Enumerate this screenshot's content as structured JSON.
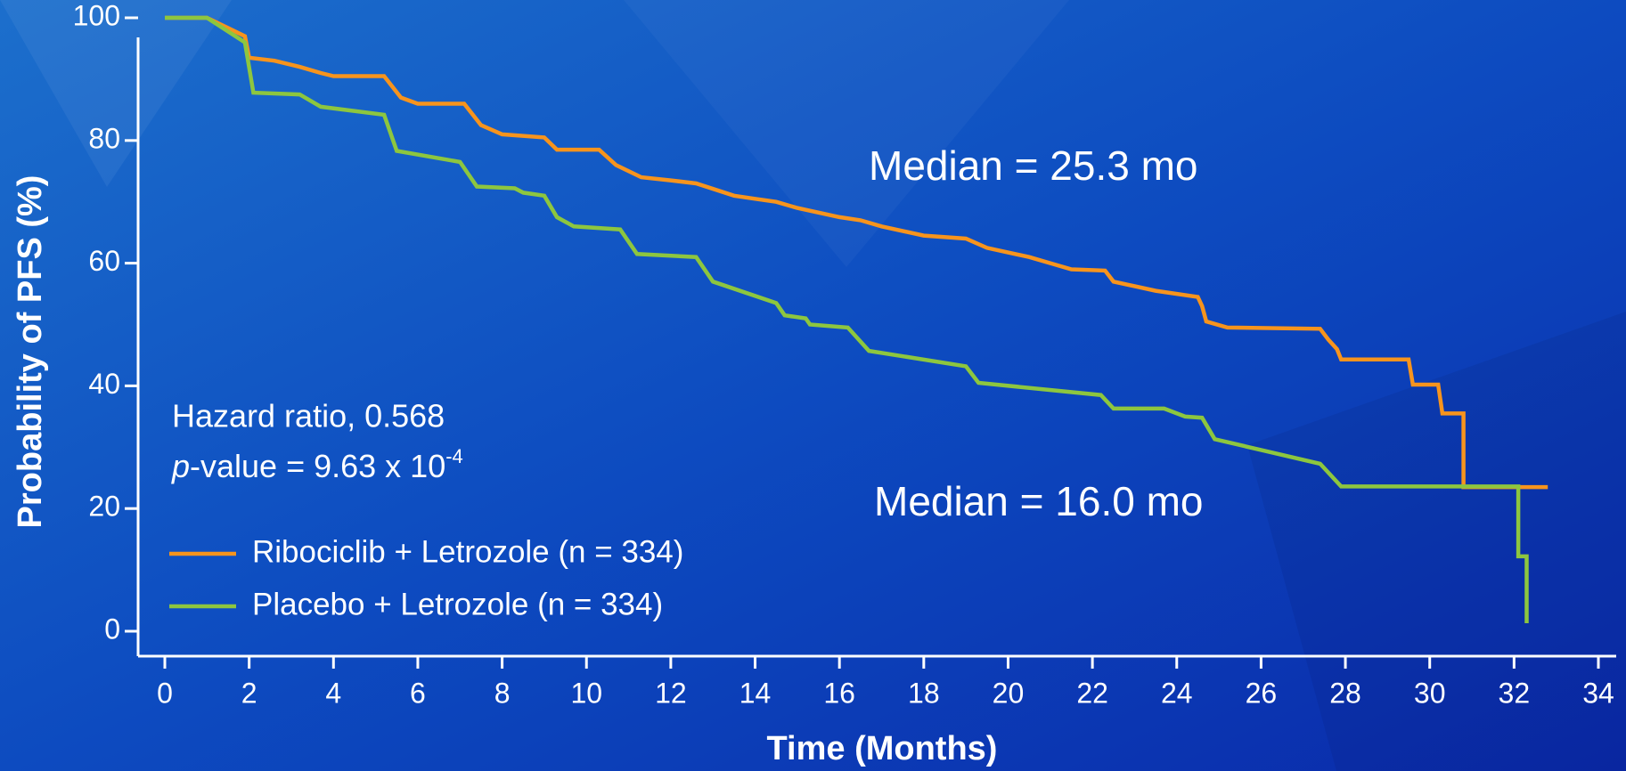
{
  "chart_data": {
    "type": "line",
    "xlabel": "Time (Months)",
    "ylabel": "Probability of PFS (%)",
    "xlim": [
      0,
      34
    ],
    "xticks": [
      0,
      2,
      4,
      6,
      8,
      10,
      12,
      14,
      16,
      18,
      20,
      22,
      24,
      26,
      28,
      30,
      32,
      34
    ],
    "ylim": [
      0,
      100
    ],
    "yticks": [
      0,
      20,
      40,
      60,
      80,
      100
    ],
    "grid": false,
    "legend": "lower left",
    "annotations": {
      "hazard": "Hazard ratio, 0.568",
      "pvalue": {
        "italic": "p",
        "text": "-value = 9.63 x 10",
        "superscript": "-4"
      },
      "median_ribociclib": {
        "text": "Median = 25.3 mo",
        "color": "#f7941d"
      },
      "median_placebo": {
        "text": "Median = 16.0 mo",
        "color": "#8dc63f"
      }
    },
    "series": [
      {
        "name": "Ribociclib + Letrozole (n = 334)",
        "color": "#f7941d",
        "x": [
          0,
          1,
          1.9,
          2,
          2.6,
          3.2,
          3.7,
          4,
          5.2,
          5.6,
          6,
          7.1,
          7.5,
          8,
          9,
          9.3,
          10.3,
          10.7,
          11.3,
          12,
          12.6,
          13.5,
          14,
          14.5,
          15,
          16,
          16.5,
          17,
          18,
          19,
          19.5,
          20.5,
          21,
          21.5,
          22.3,
          22.5,
          23.5,
          24.5,
          24.6,
          24.7,
          25.2,
          27.4,
          27.6,
          27.8,
          27.9,
          29.5,
          29.6,
          30.2,
          30.3,
          30.8,
          30.8,
          32.8
        ],
        "values": [
          100,
          100,
          97,
          93.5,
          93,
          92,
          91,
          90.5,
          90.5,
          87,
          86,
          86,
          82.5,
          81,
          80.5,
          78.5,
          78.5,
          76,
          74,
          73.5,
          73,
          71,
          70.5,
          70,
          69,
          67.5,
          67,
          66,
          64.5,
          64,
          62.5,
          61,
          60,
          59,
          58.8,
          57,
          55.5,
          54.5,
          53,
          50.5,
          49.5,
          49.3,
          47.5,
          46,
          44.3,
          44.3,
          40.2,
          40.2,
          35.5,
          35.5,
          23.5,
          23.5
        ]
      },
      {
        "name": "Placebo + Letrozole (n = 334)",
        "color": "#8dc63f",
        "x": [
          0,
          1,
          1.9,
          2.1,
          3.2,
          3.7,
          5.2,
          5.5,
          7,
          7.4,
          8.3,
          8.5,
          9,
          9.3,
          9.7,
          10.8,
          11.2,
          12.6,
          13,
          14.5,
          14.7,
          15.2,
          15.3,
          16.2,
          16.7,
          19,
          19.3,
          22.2,
          22.5,
          23.7,
          24.2,
          24.6,
          24.9,
          27.4,
          27.9,
          32.1,
          32.1,
          32.3,
          32.3
        ],
        "values": [
          100,
          100,
          96,
          87.8,
          87.5,
          85.5,
          84.2,
          78.3,
          76.5,
          72.5,
          72.2,
          71.5,
          71,
          67.5,
          66,
          65.5,
          61.5,
          61,
          57,
          53.5,
          51.5,
          51,
          50,
          49.5,
          45.7,
          43.2,
          40.5,
          38.5,
          36.3,
          36.3,
          35,
          34.8,
          31.3,
          27.3,
          23.6,
          23.6,
          12.2,
          12.2,
          1.3
        ]
      }
    ]
  }
}
